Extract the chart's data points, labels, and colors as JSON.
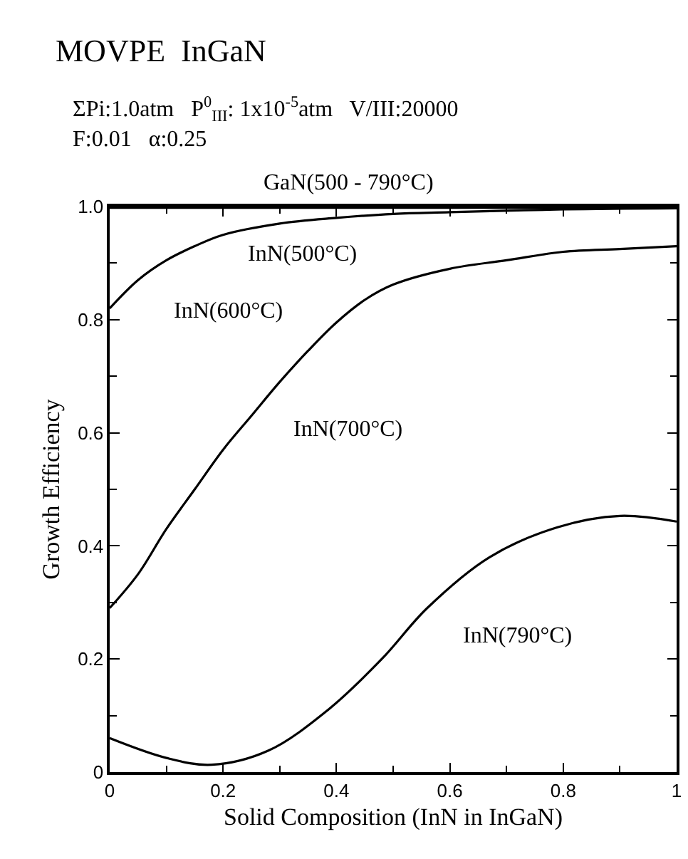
{
  "chart_data": {
    "type": "line",
    "title": "MOVPE  InGaN",
    "subtitle": "ΣPi:1.0atm   P$^{0}$$_{III}$: 1x10$^{-5}$atm   V/III:20000\nF:0.01   α:0.25",
    "xlabel": "Solid Composition (InN in InGaN)",
    "ylabel": "Growth Efficiency",
    "series": [
      {
        "color": "#000000",
        "x": [
          0,
          1
        ],
        "values": [
          0.998,
          0.998
        ]
      },
      {
        "color": "#000000",
        "x": [
          0,
          0.05,
          0.1,
          0.15,
          0.2,
          0.3,
          0.4,
          0.5,
          0.6,
          0.8,
          1.0
        ],
        "values": [
          0.82,
          0.87,
          0.905,
          0.93,
          0.95,
          0.97,
          0.98,
          0.987,
          0.99,
          0.995,
          0.997
        ]
      },
      {
        "color": "#000000",
        "x": [
          0,
          0.05,
          0.1,
          0.15,
          0.2,
          0.25,
          0.3,
          0.35,
          0.4,
          0.45,
          0.5,
          0.6,
          0.7,
          0.8,
          0.9,
          1.0
        ],
        "values": [
          0.29,
          0.35,
          0.43,
          0.5,
          0.57,
          0.63,
          0.69,
          0.745,
          0.795,
          0.835,
          0.862,
          0.89,
          0.905,
          0.92,
          0.925,
          0.93
        ]
      },
      {
        "color": "#000000",
        "x": [
          0,
          0.1,
          0.18,
          0.28,
          0.385,
          0.48,
          0.56,
          0.67,
          0.79,
          0.9,
          1.0
        ],
        "values": [
          0.06,
          0.025,
          0.013,
          0.038,
          0.11,
          0.2,
          0.29,
          0.38,
          0.433,
          0.453,
          0.443
        ]
      }
    ],
    "annotations": [
      "GaN(500 - 790°C)",
      "InN(500°C)",
      "InN(600°C)",
      "InN(700°C)",
      "InN(790°C)"
    ],
    "xlim": [
      0,
      1
    ],
    "ylim": [
      0,
      1
    ],
    "xticks": [
      0,
      0.2,
      0.4,
      0.6,
      0.8,
      1
    ],
    "yticks": [
      0,
      0.2,
      0.4,
      0.6,
      0.8,
      {
        "value": 1,
        "label": "1.0"
      }
    ],
    "grid": false,
    "marker": "none",
    "line_style": "solid"
  }
}
